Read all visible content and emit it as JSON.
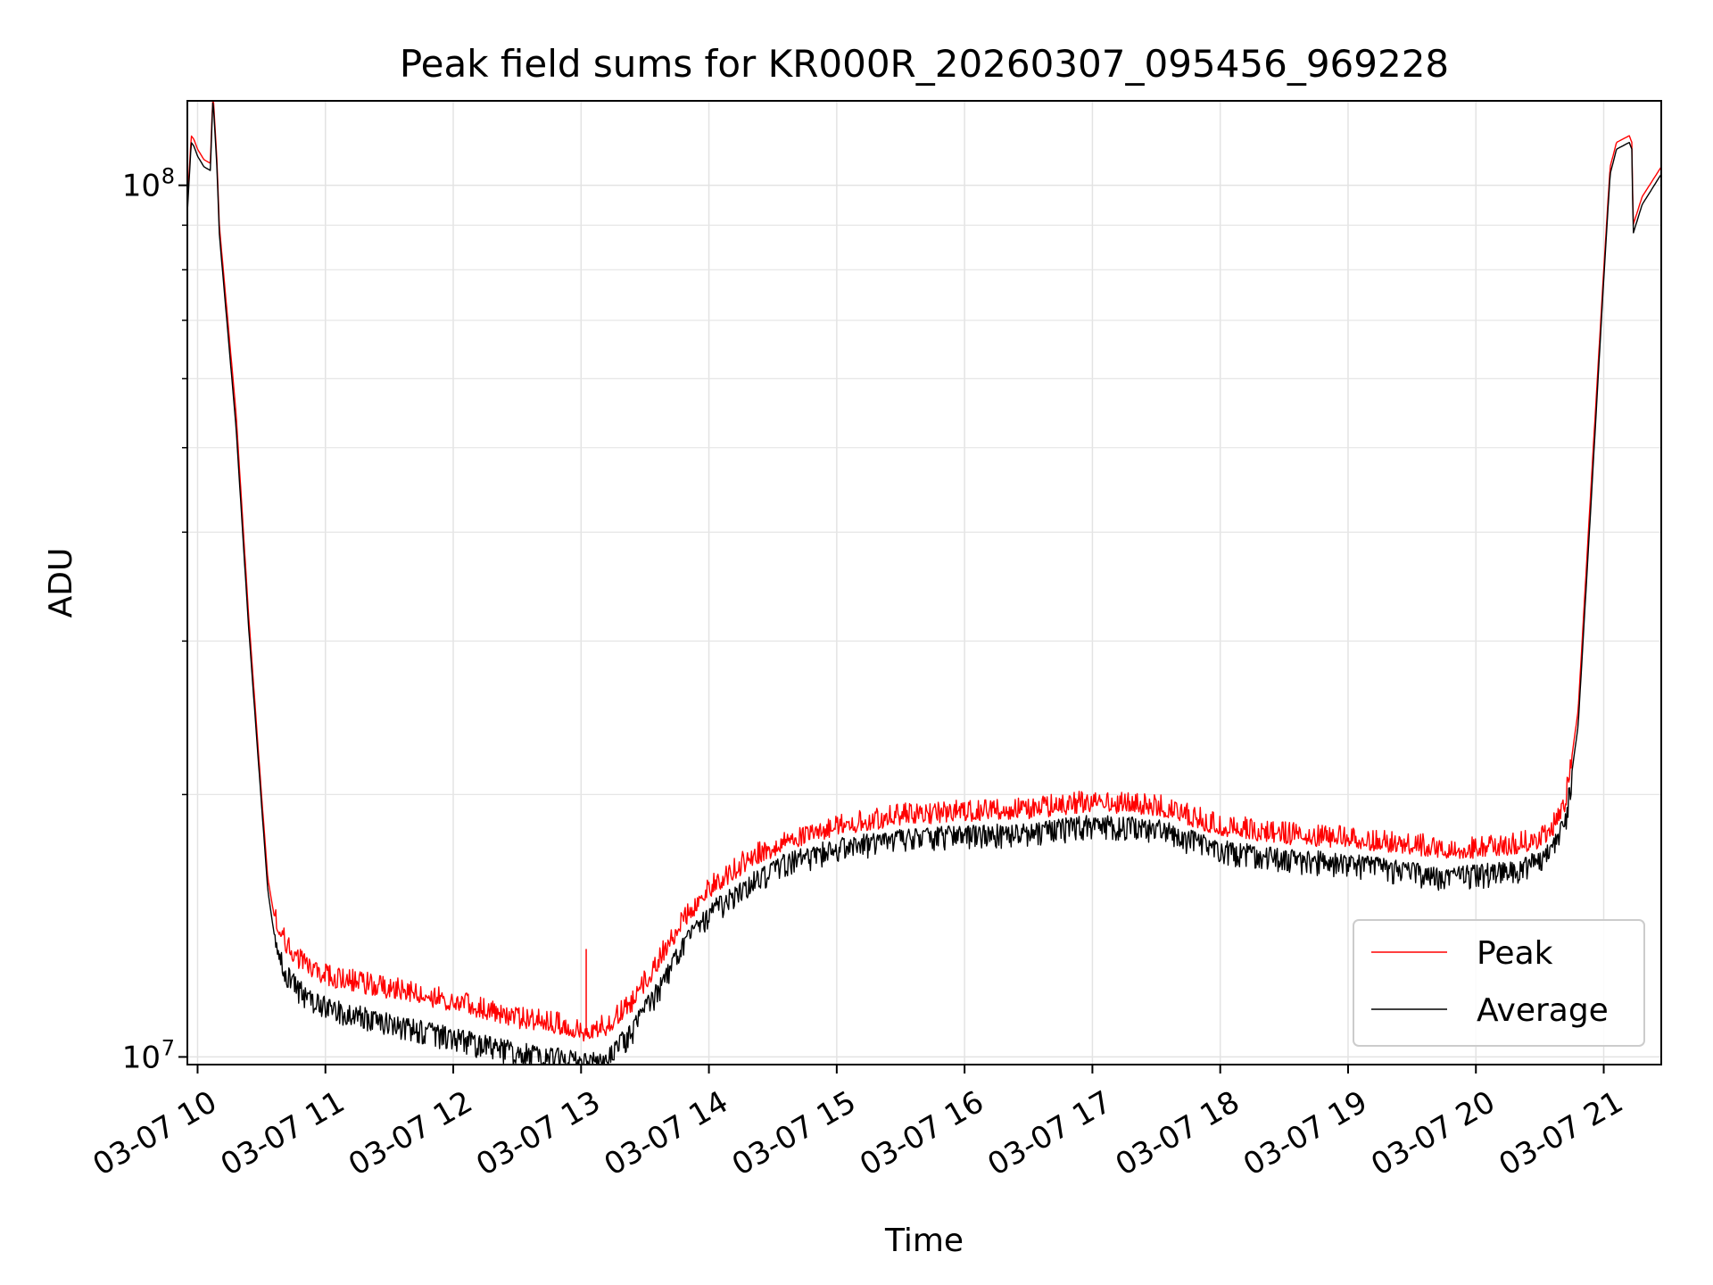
{
  "chart_data": {
    "type": "line",
    "title": "Peak field sums for KR000R_20260307_095456_969228",
    "xlabel": "Time",
    "ylabel": "ADU",
    "y_scale": "log",
    "ylim": [
      9800000,
      125000000
    ],
    "x_hours_range": [
      9.92,
      21.45
    ],
    "x_ticks": [
      {
        "hour": 10,
        "label": "03-07 10"
      },
      {
        "hour": 11,
        "label": "03-07 11"
      },
      {
        "hour": 12,
        "label": "03-07 12"
      },
      {
        "hour": 13,
        "label": "03-07 13"
      },
      {
        "hour": 14,
        "label": "03-07 14"
      },
      {
        "hour": 15,
        "label": "03-07 15"
      },
      {
        "hour": 16,
        "label": "03-07 16"
      },
      {
        "hour": 17,
        "label": "03-07 17"
      },
      {
        "hour": 18,
        "label": "03-07 18"
      },
      {
        "hour": 19,
        "label": "03-07 19"
      },
      {
        "hour": 20,
        "label": "03-07 20"
      },
      {
        "hour": 21,
        "label": "03-07 21"
      }
    ],
    "y_major_ticks": [
      {
        "value": 10000000,
        "base": "10",
        "exp": "7"
      },
      {
        "value": 100000000,
        "base": "10",
        "exp": "8"
      }
    ],
    "y_minor_ticks": [
      20000000,
      30000000,
      40000000,
      50000000,
      60000000,
      70000000,
      80000000,
      90000000
    ],
    "grid": true,
    "legend": {
      "position": "lower-right",
      "entries": [
        "Peak",
        "Average"
      ]
    },
    "series": [
      {
        "name": "Peak",
        "color": "#ff0000",
        "noise_up": 0.04,
        "noise_down": 0.02,
        "x": [
          9.92,
          9.95,
          9.97,
          10.0,
          10.05,
          10.1,
          10.12,
          10.15,
          10.17,
          10.3,
          10.4,
          10.5,
          10.55,
          10.6,
          10.7,
          10.8,
          11.0,
          11.5,
          12.0,
          12.5,
          12.9,
          13.05,
          13.2,
          13.4,
          13.6,
          13.8,
          14.0,
          14.3,
          14.6,
          15.0,
          15.5,
          16.0,
          16.5,
          17.0,
          17.5,
          18.0,
          18.5,
          19.0,
          19.5,
          19.8,
          20.0,
          20.3,
          20.5,
          20.6,
          20.7,
          20.8,
          20.9,
          21.0,
          21.05,
          21.1,
          21.15,
          21.2,
          21.22,
          21.23,
          21.3,
          21.45
        ],
        "y": [
          95000000,
          114000000,
          113000000,
          110000000,
          107000000,
          106000000,
          128000000,
          108000000,
          90000000,
          55000000,
          32000000,
          20000000,
          16000000,
          14500000,
          13300000,
          12800000,
          12300000,
          11900000,
          11500000,
          11000000,
          10800000,
          10600000,
          10800000,
          11500000,
          12800000,
          14300000,
          15500000,
          16700000,
          17600000,
          18300000,
          18800000,
          19000000,
          19100000,
          19500000,
          19300000,
          18300000,
          17900000,
          17700000,
          17400000,
          17200000,
          17200000,
          17400000,
          17700000,
          18200000,
          19500000,
          25000000,
          45000000,
          80000000,
          105000000,
          112000000,
          113000000,
          114000000,
          112000000,
          90000000,
          97000000,
          105000000
        ]
      },
      {
        "name": "Average",
        "color": "#000000",
        "noise_up": 0.02,
        "noise_down": 0.045,
        "x": [
          9.92,
          9.95,
          9.97,
          10.0,
          10.05,
          10.1,
          10.12,
          10.15,
          10.17,
          10.3,
          10.4,
          10.5,
          10.55,
          10.6,
          10.7,
          10.8,
          11.0,
          11.5,
          12.0,
          12.5,
          12.9,
          13.05,
          13.2,
          13.4,
          13.6,
          13.8,
          14.0,
          14.3,
          14.6,
          15.0,
          15.5,
          16.0,
          16.5,
          17.0,
          17.5,
          18.0,
          18.5,
          19.0,
          19.5,
          19.8,
          20.0,
          20.3,
          20.5,
          20.6,
          20.7,
          20.8,
          20.9,
          21.0,
          21.05,
          21.1,
          21.15,
          21.2,
          21.22,
          21.23,
          21.3,
          21.45
        ],
        "y": [
          93000000,
          112000000,
          111000000,
          108000000,
          105000000,
          104000000,
          126000000,
          106000000,
          88000000,
          53000000,
          31000000,
          19500000,
          15500000,
          13800000,
          12500000,
          12000000,
          11500000,
          11000000,
          10600000,
          10200000,
          10000000,
          9900000,
          10000000,
          10800000,
          12000000,
          13500000,
          14700000,
          15900000,
          16800000,
          17500000,
          17900000,
          18100000,
          18200000,
          18600000,
          18400000,
          17400000,
          17000000,
          16800000,
          16400000,
          16200000,
          16300000,
          16500000,
          16900000,
          17400000,
          18700000,
          24000000,
          43000000,
          78000000,
          103000000,
          110000000,
          111000000,
          112000000,
          110000000,
          88000000,
          95000000,
          103000000
        ]
      }
    ]
  }
}
